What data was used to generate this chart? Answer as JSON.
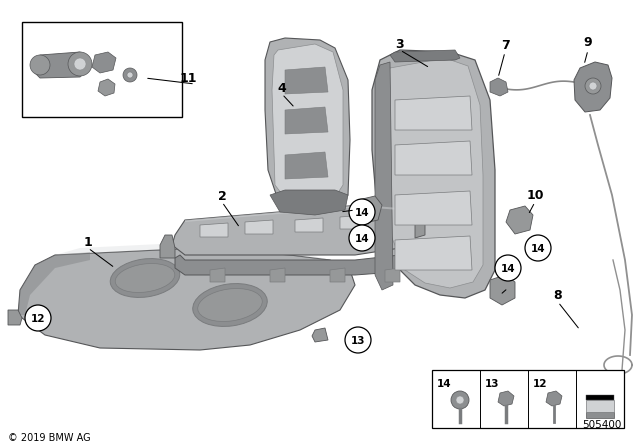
{
  "bg_color": "#ffffff",
  "copyright": "© 2019 BMW AG",
  "part_number": "505400",
  "gray_main": "#b0b2b4",
  "gray_dark": "#7a7c7e",
  "gray_light": "#d0d2d4",
  "gray_mid": "#969899",
  "gray_steel": "#8c8e90",
  "outline": "#555658",
  "black": "#000000",
  "white": "#ffffff",
  "label_fs": 9,
  "circle_fs": 8
}
